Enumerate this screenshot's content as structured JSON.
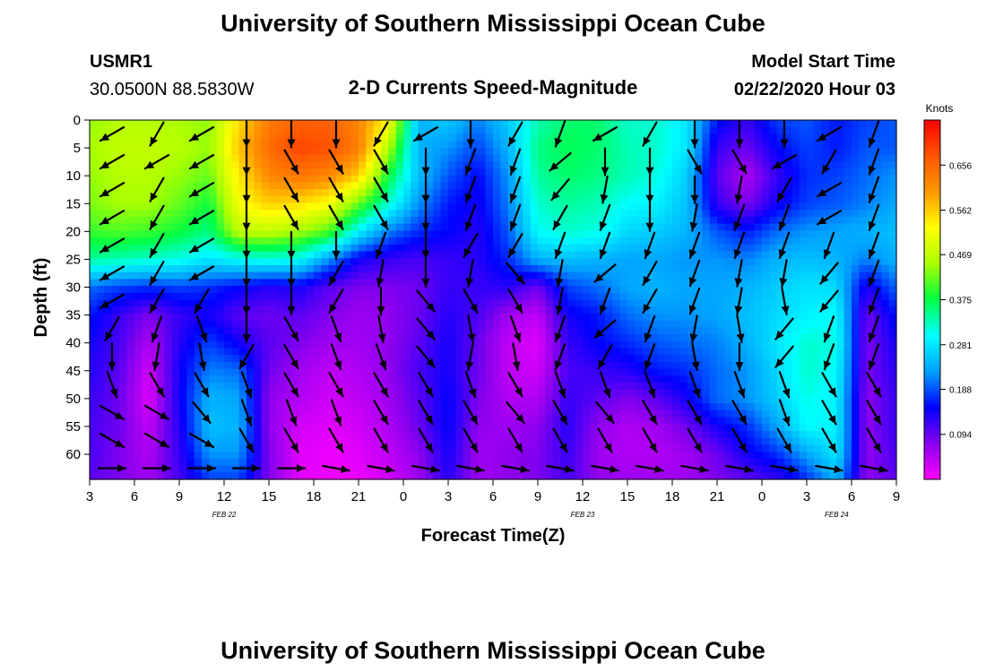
{
  "header": {
    "title": "University of Southern Mississippi Ocean Cube",
    "station_id": "USMR1",
    "station_coords": "30.0500N 88.5830W",
    "subtitle": "2-D Currents Speed-Magnitude",
    "model_start_label": "Model Start Time",
    "model_start_value": "02/22/2020 Hour 03"
  },
  "footer": {
    "title": "University of Southern Mississippi Ocean Cube"
  },
  "chart_data": {
    "type": "heatmap",
    "title": "2-D Currents Speed-Magnitude",
    "xlabel": "Forecast Time(Z)",
    "ylabel": "Depth (ft)",
    "x_tick_labels": [
      "3",
      "6",
      "9",
      "12",
      "15",
      "18",
      "21",
      "0",
      "3",
      "6",
      "9",
      "12",
      "15",
      "18",
      "21",
      "0",
      "3",
      "6",
      "9"
    ],
    "x_hours": [
      0,
      3,
      6,
      9,
      12,
      15,
      18,
      21,
      24,
      27,
      30,
      33,
      36,
      39,
      42,
      45,
      48,
      51,
      54
    ],
    "date_labels": [
      {
        "label": "FEB 22",
        "hour": 9
      },
      {
        "label": "FEB 23",
        "hour": 33
      },
      {
        "label": "FEB 24",
        "hour": 50
      }
    ],
    "y_ticks": [
      0,
      5,
      10,
      15,
      20,
      25,
      30,
      35,
      40,
      45,
      50,
      55,
      60
    ],
    "ylim": [
      0,
      64.5
    ],
    "xlim": [
      0,
      54
    ],
    "y_inverted": true,
    "colorbar": {
      "label": "Knots",
      "ticks": [
        "0.656",
        "0.562",
        "0.469",
        "0.375",
        "0.281",
        "0.188",
        "0.094"
      ],
      "tick_values": [
        0.656,
        0.562,
        0.469,
        0.375,
        0.281,
        0.188,
        0.094
      ],
      "range": [
        0,
        0.75
      ],
      "colors": [
        "#ff00ff",
        "#8800ee",
        "#0000ff",
        "#00a0ff",
        "#00ffff",
        "#00ff44",
        "#aaff00",
        "#ffff00",
        "#ff9900",
        "#ff5500",
        "#ff0000"
      ]
    },
    "speed_grid": {
      "hours": [
        0,
        2,
        4,
        6,
        8,
        10,
        12,
        14,
        16,
        18,
        20,
        22,
        24,
        26,
        28,
        30,
        32,
        34,
        36,
        38,
        40,
        42,
        44,
        46,
        48,
        50,
        52,
        54
      ],
      "depths": [
        0,
        5,
        10,
        15,
        20,
        25,
        30,
        35,
        40,
        45,
        50,
        55,
        60,
        64.5
      ],
      "values": [
        [
          0.44,
          0.46,
          0.46,
          0.45,
          0.44,
          0.55,
          0.63,
          0.66,
          0.66,
          0.62,
          0.53,
          0.24,
          0.26,
          0.21,
          0.26,
          0.33,
          0.36,
          0.36,
          0.32,
          0.32,
          0.28,
          0.16,
          0.12,
          0.18,
          0.19,
          0.16,
          0.18,
          0.19
        ],
        [
          0.45,
          0.47,
          0.47,
          0.46,
          0.44,
          0.57,
          0.65,
          0.69,
          0.68,
          0.63,
          0.46,
          0.24,
          0.22,
          0.18,
          0.24,
          0.35,
          0.37,
          0.36,
          0.33,
          0.32,
          0.28,
          0.12,
          0.09,
          0.15,
          0.18,
          0.16,
          0.19,
          0.19
        ],
        [
          0.44,
          0.46,
          0.46,
          0.44,
          0.42,
          0.54,
          0.62,
          0.64,
          0.62,
          0.56,
          0.38,
          0.25,
          0.19,
          0.15,
          0.22,
          0.34,
          0.36,
          0.35,
          0.33,
          0.31,
          0.26,
          0.1,
          0.05,
          0.12,
          0.17,
          0.18,
          0.2,
          0.22
        ],
        [
          0.43,
          0.45,
          0.45,
          0.42,
          0.38,
          0.52,
          0.56,
          0.55,
          0.52,
          0.42,
          0.32,
          0.22,
          0.16,
          0.14,
          0.21,
          0.32,
          0.34,
          0.33,
          0.3,
          0.29,
          0.25,
          0.12,
          0.08,
          0.14,
          0.18,
          0.19,
          0.21,
          0.23
        ],
        [
          0.4,
          0.41,
          0.4,
          0.38,
          0.35,
          0.47,
          0.47,
          0.45,
          0.41,
          0.29,
          0.21,
          0.17,
          0.15,
          0.13,
          0.19,
          0.3,
          0.32,
          0.31,
          0.27,
          0.26,
          0.24,
          0.19,
          0.16,
          0.2,
          0.22,
          0.23,
          0.24,
          0.25
        ],
        [
          0.34,
          0.33,
          0.32,
          0.31,
          0.28,
          0.3,
          0.31,
          0.3,
          0.22,
          0.14,
          0.12,
          0.11,
          0.12,
          0.13,
          0.17,
          0.24,
          0.25,
          0.24,
          0.23,
          0.23,
          0.22,
          0.22,
          0.21,
          0.24,
          0.25,
          0.24,
          0.21,
          0.24
        ],
        [
          0.2,
          0.18,
          0.17,
          0.18,
          0.17,
          0.15,
          0.13,
          0.14,
          0.1,
          0.08,
          0.08,
          0.09,
          0.12,
          0.12,
          0.13,
          0.09,
          0.18,
          0.2,
          0.23,
          0.24,
          0.23,
          0.23,
          0.24,
          0.26,
          0.28,
          0.27,
          0.13,
          0.2
        ],
        [
          0.16,
          0.12,
          0.08,
          0.12,
          0.14,
          0.1,
          0.09,
          0.1,
          0.08,
          0.06,
          0.07,
          0.09,
          0.13,
          0.11,
          0.06,
          0.04,
          0.14,
          0.16,
          0.2,
          0.22,
          0.22,
          0.23,
          0.25,
          0.27,
          0.29,
          0.3,
          0.09,
          0.16
        ],
        [
          0.14,
          0.11,
          0.05,
          0.13,
          0.18,
          0.14,
          0.1,
          0.08,
          0.06,
          0.06,
          0.07,
          0.1,
          0.14,
          0.09,
          0.04,
          0.02,
          0.12,
          0.15,
          0.17,
          0.19,
          0.2,
          0.21,
          0.24,
          0.28,
          0.32,
          0.31,
          0.08,
          0.14
        ],
        [
          0.13,
          0.1,
          0.03,
          0.14,
          0.21,
          0.2,
          0.09,
          0.06,
          0.04,
          0.05,
          0.07,
          0.11,
          0.14,
          0.09,
          0.04,
          0.03,
          0.11,
          0.12,
          0.13,
          0.16,
          0.17,
          0.2,
          0.22,
          0.27,
          0.32,
          0.3,
          0.08,
          0.13
        ],
        [
          0.12,
          0.09,
          0.02,
          0.14,
          0.24,
          0.23,
          0.07,
          0.05,
          0.03,
          0.04,
          0.06,
          0.1,
          0.15,
          0.08,
          0.05,
          0.05,
          0.12,
          0.1,
          0.08,
          0.1,
          0.14,
          0.2,
          0.22,
          0.26,
          0.31,
          0.29,
          0.07,
          0.12
        ],
        [
          0.11,
          0.09,
          0.04,
          0.13,
          0.25,
          0.24,
          0.07,
          0.03,
          0.02,
          0.03,
          0.05,
          0.09,
          0.15,
          0.07,
          0.06,
          0.07,
          0.13,
          0.07,
          0.05,
          0.06,
          0.09,
          0.14,
          0.17,
          0.23,
          0.3,
          0.29,
          0.07,
          0.12
        ],
        [
          0.11,
          0.08,
          0.05,
          0.12,
          0.22,
          0.22,
          0.08,
          0.02,
          0.01,
          0.02,
          0.04,
          0.07,
          0.14,
          0.06,
          0.07,
          0.08,
          0.12,
          0.06,
          0.05,
          0.05,
          0.06,
          0.09,
          0.14,
          0.17,
          0.23,
          0.28,
          0.07,
          0.11
        ],
        [
          0.1,
          0.08,
          0.06,
          0.11,
          0.18,
          0.18,
          0.08,
          0.02,
          0.01,
          0.01,
          0.03,
          0.06,
          0.13,
          0.06,
          0.07,
          0.08,
          0.11,
          0.07,
          0.06,
          0.06,
          0.06,
          0.08,
          0.1,
          0.12,
          0.17,
          0.24,
          0.07,
          0.1
        ]
      ]
    },
    "vectors": {
      "hours": [
        1.5,
        4.5,
        7.5,
        10.5,
        13.5,
        16.5,
        19.5,
        22.5,
        25.5,
        28.5,
        31.5,
        34.5,
        37.5,
        40.5,
        43.5,
        46.5,
        49.5,
        52.5
      ],
      "depths": [
        2.5,
        7.5,
        12.5,
        17.5,
        22.5,
        27.5,
        32.5,
        37.5,
        42.5,
        47.5,
        52.5,
        57.5,
        62.5
      ],
      "directions_deg": [
        [
          240,
          210,
          240,
          180,
          180,
          180,
          210,
          240,
          180,
          210,
          200,
          240,
          210,
          180,
          180,
          180,
          240,
          200
        ],
        [
          240,
          240,
          240,
          180,
          150,
          150,
          150,
          180,
          200,
          200,
          230,
          180,
          180,
          150,
          150,
          240,
          210,
          200
        ],
        [
          240,
          210,
          240,
          180,
          150,
          150,
          150,
          180,
          200,
          200,
          220,
          190,
          180,
          180,
          190,
          210,
          240,
          200
        ],
        [
          240,
          210,
          240,
          180,
          150,
          150,
          150,
          180,
          200,
          200,
          210,
          200,
          180,
          190,
          200,
          200,
          240,
          200
        ],
        [
          240,
          210,
          240,
          180,
          180,
          180,
          200,
          180,
          210,
          210,
          200,
          200,
          200,
          200,
          200,
          200,
          200,
          200
        ],
        [
          240,
          210,
          240,
          180,
          180,
          210,
          190,
          180,
          190,
          140,
          190,
          230,
          210,
          200,
          190,
          190,
          220,
          200
        ],
        [
          240,
          210,
          210,
          180,
          180,
          210,
          180,
          140,
          150,
          150,
          190,
          200,
          210,
          200,
          190,
          170,
          220,
          200
        ],
        [
          210,
          200,
          160,
          180,
          150,
          160,
          170,
          140,
          170,
          160,
          200,
          230,
          200,
          190,
          170,
          220,
          200,
          200
        ],
        [
          180,
          190,
          170,
          210,
          150,
          160,
          160,
          140,
          190,
          170,
          200,
          210,
          200,
          170,
          180,
          220,
          200,
          200
        ],
        [
          160,
          150,
          150,
          160,
          150,
          150,
          150,
          150,
          160,
          150,
          160,
          160,
          160,
          160,
          160,
          160,
          150,
          150
        ],
        [
          120,
          120,
          140,
          160,
          160,
          160,
          150,
          150,
          150,
          140,
          150,
          140,
          150,
          150,
          150,
          160,
          150,
          150
        ],
        [
          120,
          120,
          120,
          150,
          150,
          150,
          150,
          150,
          150,
          150,
          150,
          150,
          150,
          150,
          150,
          150,
          150,
          150
        ],
        [
          90,
          90,
          90,
          90,
          90,
          100,
          100,
          100,
          100,
          100,
          100,
          100,
          100,
          100,
          100,
          100,
          100,
          100
        ]
      ]
    }
  }
}
